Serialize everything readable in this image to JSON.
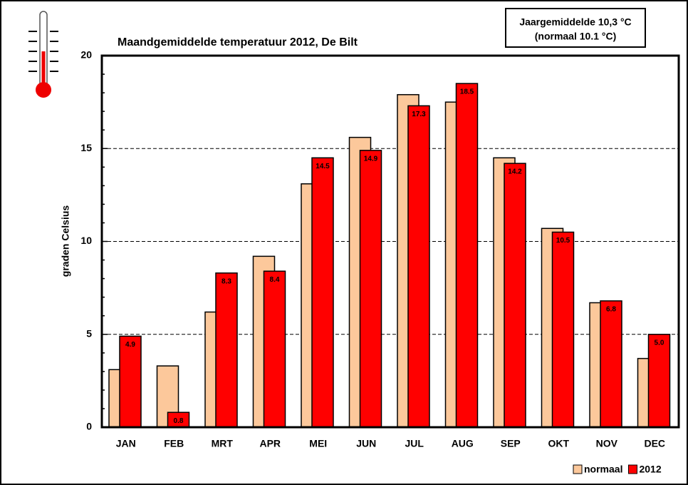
{
  "chart_data": {
    "type": "bar",
    "title": "Maandgemiddelde temperatuur 2012, De Bilt",
    "annotation": [
      "Jaargemiddelde 10,3 °C",
      "(normaal 10.1 °C)"
    ],
    "y_label": "graden Celsius",
    "categories": [
      "JAN",
      "FEB",
      "MRT",
      "APR",
      "MEI",
      "JUN",
      "JUL",
      "AUG",
      "SEP",
      "OKT",
      "NOV",
      "DEC"
    ],
    "series": [
      {
        "name": "normaal",
        "color": "#fcc89b",
        "values": [
          3.1,
          3.3,
          6.2,
          9.2,
          13.1,
          15.6,
          17.9,
          17.5,
          14.5,
          10.7,
          6.7,
          3.7
        ]
      },
      {
        "name": "2012",
        "color": "#ff0000",
        "values": [
          4.9,
          0.8,
          8.3,
          8.4,
          14.5,
          14.9,
          17.3,
          18.5,
          14.2,
          10.5,
          6.8,
          5.0
        ],
        "value_labels": [
          "4.9",
          "0.8",
          "8.3",
          "8.4",
          "14.5",
          "14.9",
          "17.3",
          "18.5",
          "14.2",
          "10.5",
          "6.8",
          "5.0"
        ]
      }
    ],
    "ylim": [
      0,
      20
    ],
    "yticks": [
      0,
      5,
      10,
      15,
      20
    ],
    "grid": true,
    "legend": "bottom-right"
  }
}
